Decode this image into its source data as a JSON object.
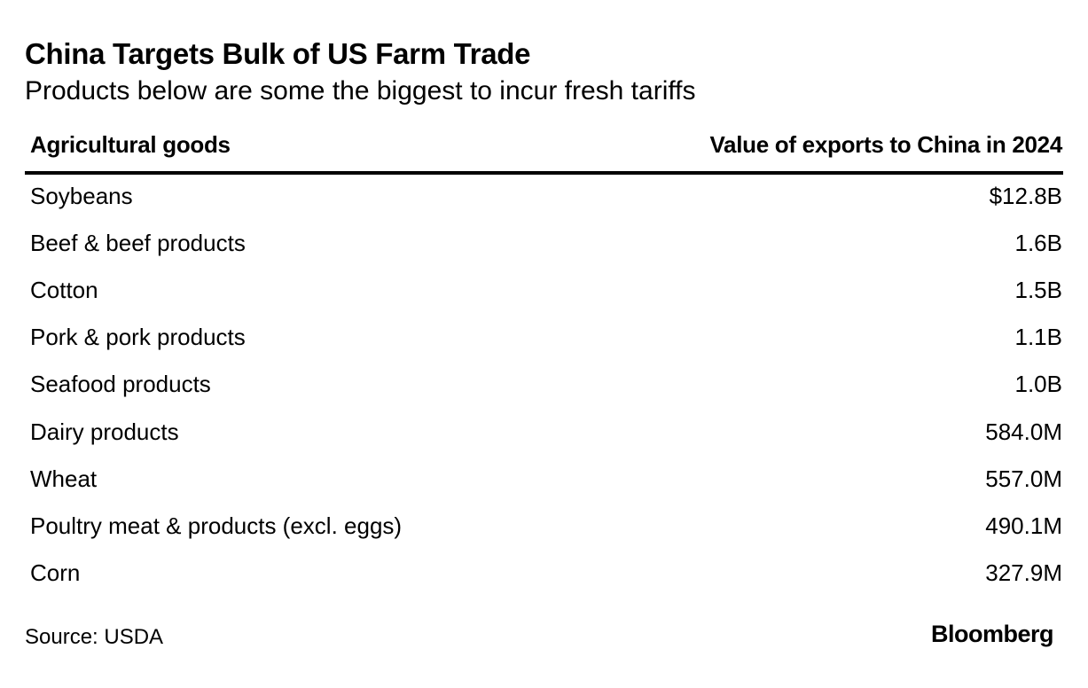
{
  "header": {
    "title": "China Targets Bulk of US Farm Trade",
    "subtitle": "Products below are some the biggest to incur fresh tariffs"
  },
  "table": {
    "columns": [
      "Agricultural goods",
      "Value of exports to China in 2024"
    ],
    "rows": [
      [
        "Soybeans",
        "$12.8B"
      ],
      [
        "Beef & beef products",
        "1.6B"
      ],
      [
        "Cotton",
        "1.5B"
      ],
      [
        "Pork & pork products",
        "1.1B"
      ],
      [
        "Seafood products",
        "1.0B"
      ],
      [
        "Dairy products",
        "584.0M"
      ],
      [
        "Wheat",
        "557.0M"
      ],
      [
        "Poultry meat & products (excl. eggs)",
        "490.1M"
      ],
      [
        "Corn",
        "327.9M"
      ]
    ]
  },
  "footer": {
    "source": "Source: USDA",
    "logo": "Bloomberg"
  }
}
